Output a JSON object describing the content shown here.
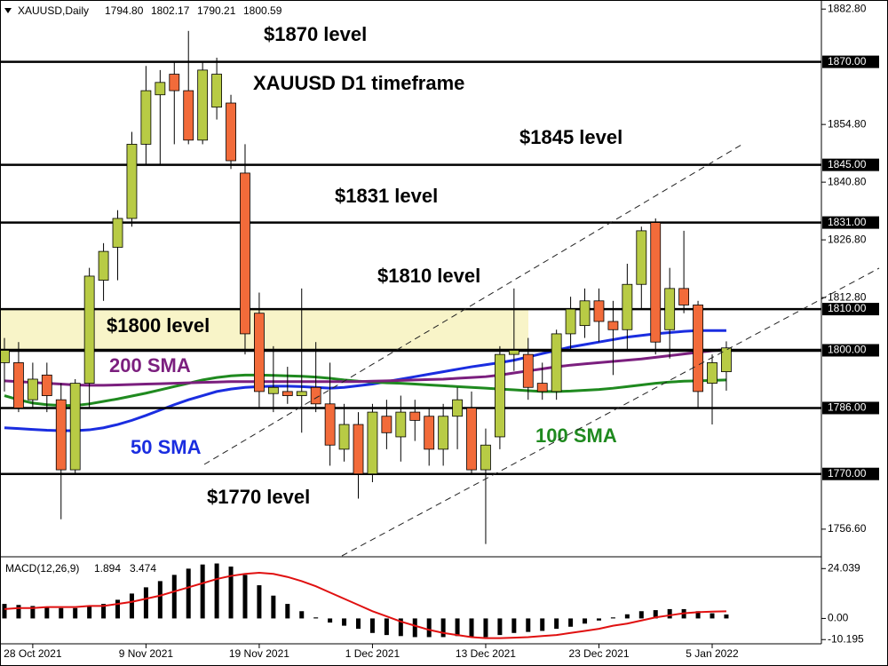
{
  "chart_data": [
    {
      "type": "candlestick",
      "title": "XAUUSD D1 timeframe",
      "header_symbol": "XAUUSD,Daily",
      "header_values": [
        {
          "value": 1794.8,
          "label": "1794.80"
        },
        {
          "value": 1802.17,
          "label": "1802.17"
        },
        {
          "value": 1790.21,
          "label": "1790.21"
        },
        {
          "value": 1800.59,
          "label": "1800.59"
        }
      ],
      "categories": [
        null,
        null,
        "28 Oct 2021",
        null,
        null,
        null,
        null,
        null,
        null,
        null,
        "9 Nov 2021",
        null,
        null,
        null,
        null,
        null,
        null,
        null,
        "19 Nov 2021",
        null,
        null,
        null,
        null,
        null,
        null,
        null,
        "1 Dec 2021",
        null,
        null,
        null,
        null,
        null,
        null,
        null,
        "13 Dec 2021",
        null,
        null,
        null,
        null,
        null,
        null,
        null,
        "23 Dec 2021",
        null,
        null,
        null,
        null,
        null,
        null,
        null,
        "5 Jan 2022",
        null
      ],
      "open": [
        1797,
        1797,
        1788,
        1794,
        1788,
        1771,
        1792,
        1817,
        1825,
        1832,
        1850,
        1862,
        1867,
        1863,
        1851,
        1859,
        1860,
        1843,
        1809,
        1789.5,
        1790,
        1789,
        1791,
        1787,
        1776,
        1782,
        1770,
        1784,
        1779,
        1785,
        1784,
        1776,
        1784,
        1786,
        1771,
        1779,
        1799,
        1799,
        1792,
        1790,
        1804,
        1806,
        1812,
        1807,
        1805,
        1816,
        1831,
        1805,
        1815,
        1811,
        1792,
        1794.8
      ],
      "high": [
        1803,
        1802,
        1797,
        1797,
        1792,
        1793,
        1820,
        1826,
        1834,
        1853,
        1869,
        1868,
        1870,
        1877.5,
        1870,
        1871,
        1862,
        1850,
        1814,
        1801,
        1796,
        1815,
        1802,
        1797,
        1787,
        1785,
        1787,
        1788,
        1789,
        1788,
        1786,
        1787,
        1791,
        1790,
        1781,
        1801,
        1815,
        1803,
        1797,
        1805,
        1813,
        1815,
        1815,
        1812,
        1821,
        1830,
        1832,
        1820,
        1829,
        1812,
        1799,
        1802.17
      ],
      "low": [
        1790,
        1785,
        1786,
        1785,
        1759,
        1770,
        1786,
        1812,
        1817,
        1830,
        1845,
        1845,
        1850,
        1850,
        1850,
        1856,
        1844,
        1799,
        1786,
        1785,
        1787,
        1780,
        1785,
        1772,
        1773,
        1764,
        1768,
        1776,
        1773,
        1778,
        1772,
        1772,
        1776,
        1770,
        1753,
        1776,
        1795,
        1788,
        1788,
        1788,
        1800,
        1803,
        1802,
        1794,
        1800,
        1810,
        1799,
        1798,
        1809,
        1786,
        1782,
        1790.21
      ],
      "close": [
        1800,
        1786,
        1793,
        1789,
        1771,
        1792,
        1818,
        1824,
        1832,
        1850,
        1863,
        1865,
        1863,
        1851,
        1868,
        1867,
        1846,
        1804,
        1790,
        1791,
        1789,
        1790,
        1787,
        1777,
        1782,
        1770,
        1785,
        1780,
        1785,
        1783,
        1776,
        1784,
        1788,
        1771,
        1777,
        1799,
        1800,
        1791,
        1790,
        1804,
        1810,
        1812,
        1807,
        1805,
        1816,
        1829,
        1802,
        1815,
        1811,
        1790,
        1797,
        1800.59
      ],
      "up_color": "#b8cb45",
      "down_color": "#f26b3a",
      "series": [
        {
          "name": "50 SMA",
          "color": "#1a2de0",
          "values": [
            1781.2,
            1781,
            1780.8,
            1780.6,
            1780.5,
            1780.5,
            1780.7,
            1781.2,
            1782,
            1783,
            1784.2,
            1785.5,
            1786.8,
            1788,
            1789,
            1790,
            1790.6,
            1791,
            1791.2,
            1791.3,
            1791.3,
            1791.2,
            1791,
            1790.8,
            1791,
            1791.4,
            1791.8,
            1792.4,
            1793,
            1793.6,
            1794.2,
            1794.8,
            1795.4,
            1796,
            1796.5,
            1797,
            1797.6,
            1798.4,
            1799.2,
            1800,
            1800.8,
            1801.4,
            1802,
            1802.6,
            1803.2,
            1803.6,
            1804,
            1804.3,
            1804.6,
            1804.8,
            1804.8,
            1804.8
          ]
        },
        {
          "name": "100 SMA",
          "color": "#1f8a1f",
          "values": [
            1789,
            1788,
            1787.2,
            1786.8,
            1786.6,
            1786.6,
            1787,
            1787.6,
            1788.2,
            1788.9,
            1789.6,
            1790.4,
            1791.2,
            1792,
            1792.8,
            1793.4,
            1793.8,
            1794,
            1794,
            1793.9,
            1793.8,
            1793.7,
            1793.5,
            1793.2,
            1792.8,
            1792.5,
            1792.3,
            1792.1,
            1792,
            1791.8,
            1791.6,
            1791.4,
            1791.2,
            1791,
            1790.8,
            1790.6,
            1790.4,
            1790.2,
            1790,
            1790,
            1790.1,
            1790.3,
            1790.5,
            1790.8,
            1791.2,
            1791.6,
            1792,
            1792.3,
            1792.5,
            1792.6,
            1792.7,
            1792.8
          ]
        },
        {
          "name": "200 SMA",
          "color": "#7b1f7e",
          "values": [
            1792.6,
            1792.4,
            1792.2,
            1792,
            1791.8,
            1791.6,
            1791.5,
            1791.5,
            1791.6,
            1791.7,
            1791.8,
            1791.9,
            1792,
            1792.1,
            1792.2,
            1792.3,
            1792.4,
            1792.4,
            1792.4,
            1792.4,
            1792.4,
            1792.4,
            1792.4,
            1792.4,
            1792.4,
            1792.4,
            1792.5,
            1792.6,
            1792.7,
            1792.8,
            1792.9,
            1793,
            1793.2,
            1793.4,
            1793.6,
            1794,
            1794.5,
            1795,
            1795.5,
            1796,
            1796.4,
            1796.7,
            1797,
            1797.3,
            1797.6,
            1797.9,
            1798.3,
            1798.7,
            1799.1,
            1799.5,
            1799.9,
            1800.2
          ]
        }
      ],
      "levels": [
        {
          "value": 1870,
          "label": "1870.00",
          "name": "$1870 level"
        },
        {
          "value": 1845,
          "label": "1845.00",
          "name": "$1845 level"
        },
        {
          "value": 1831,
          "label": "1831.00",
          "name": "$1831 level"
        },
        {
          "value": 1810,
          "label": "1810.00",
          "name": "$1810 level"
        },
        {
          "value": 1800,
          "label": "1800.00",
          "name": "$1800 level"
        },
        {
          "value": 1786,
          "label": "1786.00"
        },
        {
          "value": 1770,
          "label": "1770.00",
          "name": "$1770 level"
        }
      ],
      "highlight": [
        1800,
        1810
      ],
      "highlight_color": "#f8f4c8",
      "ylim": [
        1749.9,
        1885
      ],
      "yticks": [
        {
          "value": 1882.8,
          "label": "1882.80"
        },
        {
          "value": 1854.8,
          "label": "1854.80"
        },
        {
          "value": 1840.8,
          "label": "1840.80"
        },
        {
          "value": 1826.8,
          "label": "1826.80"
        },
        {
          "value": 1812.8,
          "label": "1812.80"
        },
        {
          "value": 1756.6,
          "label": "1756.60"
        }
      ]
    },
    {
      "type": "macd",
      "title": "MACD(12,26,9)",
      "header_values": [
        1.894,
        3.474
      ],
      "histogram": {
        "color": "#000000",
        "values": [
          7,
          6.5,
          6,
          5.5,
          5,
          5,
          6,
          7,
          9,
          12,
          15,
          18,
          21,
          24,
          26,
          26.5,
          25,
          21,
          16,
          11,
          7,
          3.5,
          0.5,
          -2,
          -3.5,
          -5,
          -7,
          -8,
          -8.5,
          -9,
          -9,
          -9,
          -8.5,
          -9,
          -9,
          -8,
          -7,
          -6.5,
          -6,
          -5,
          -4,
          -2.5,
          -1,
          0.5,
          2,
          3.5,
          4,
          4.5,
          4.5,
          3.5,
          2.5,
          1.894
        ]
      },
      "signal": {
        "color": "#e01010",
        "values": [
          4.5,
          5,
          5,
          5.5,
          5.5,
          5.5,
          6,
          6,
          7,
          8,
          9.5,
          11,
          13,
          15,
          17,
          19,
          20.5,
          21.5,
          22,
          21.5,
          20,
          18,
          15.5,
          12.5,
          9.5,
          6.5,
          3.5,
          1,
          -1.5,
          -3.5,
          -5.5,
          -7,
          -8,
          -9,
          -9.5,
          -9.5,
          -9.3,
          -9,
          -8.5,
          -8,
          -7,
          -6,
          -5,
          -3.5,
          -2.5,
          -1,
          0.5,
          1.5,
          2.5,
          3,
          3.3,
          3.474
        ]
      },
      "ylim": [
        -11.8,
        29.3
      ],
      "yticks": [
        24.039,
        {
          "value": 0,
          "label": "0.00"
        },
        -10.195
      ]
    }
  ]
}
